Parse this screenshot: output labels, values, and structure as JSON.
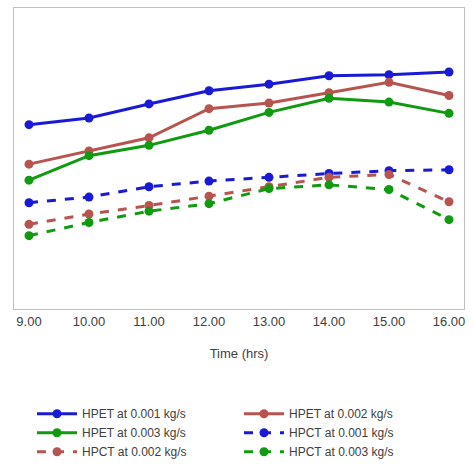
{
  "chart_data": {
    "type": "line",
    "x_label": "Time (hrs)",
    "categories": [
      "9.00",
      "10.00",
      "11.00",
      "12.00",
      "13.00",
      "14.00",
      "15.00",
      "16.00"
    ],
    "ylim": [
      0,
      320
    ],
    "tick_labels": "x",
    "grid": false,
    "legend": "bottom",
    "series": [
      {
        "name": "HPET at 0.001 kg/s",
        "color": "#1a1ad6",
        "line_style": "solid",
        "marker": "circle",
        "values": [
          196,
          203,
          218,
          232,
          239,
          248,
          249,
          252
        ]
      },
      {
        "name": "HPET at 0.002 kg/s",
        "color": "#b85450",
        "line_style": "solid",
        "marker": "circle",
        "values": [
          154,
          168,
          182,
          213,
          219,
          230,
          241,
          227
        ]
      },
      {
        "name": "HPET at 0.003 kg/s",
        "color": "#109a10",
        "line_style": "solid",
        "marker": "circle",
        "values": [
          137,
          163,
          174,
          190,
          209,
          224,
          220,
          208
        ]
      },
      {
        "name": "HPCT at 0.001 kg/s",
        "color": "#1a1ad6",
        "line_style": "dash",
        "marker": "circle",
        "values": [
          113,
          119,
          130,
          136,
          140,
          144,
          147,
          148
        ]
      },
      {
        "name": "HPCT at 0.002 kg/s",
        "color": "#b85450",
        "line_style": "dash",
        "marker": "circle",
        "values": [
          90,
          101,
          110,
          120,
          130,
          140,
          143,
          114
        ]
      },
      {
        "name": "HPCT at 0.003 kg/s",
        "color": "#109a10",
        "line_style": "dash",
        "marker": "circle",
        "values": [
          78,
          92,
          104,
          112,
          128,
          132,
          127,
          95
        ]
      }
    ]
  }
}
